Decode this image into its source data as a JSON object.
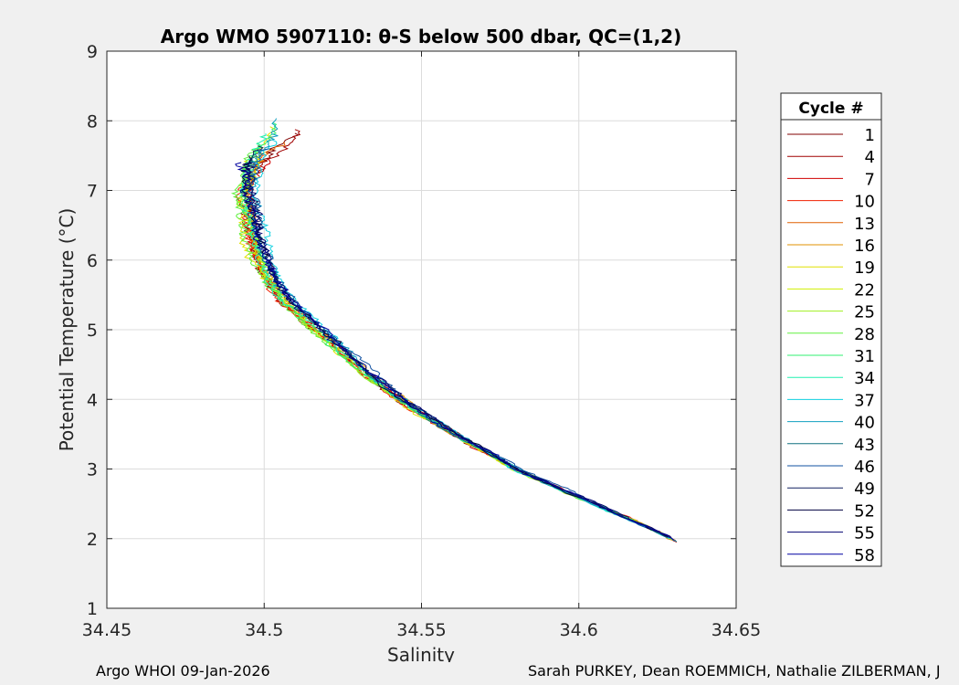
{
  "chart_data": {
    "type": "line",
    "title": "Argo WMO 5907110: θ-S below 500 dbar,  QC=(1,2)",
    "xlabel": "Salinity",
    "ylabel": "Potential Temperature (°C)",
    "xlim": [
      34.45,
      34.65
    ],
    "ylim": [
      1,
      9
    ],
    "xticks": [
      34.45,
      34.5,
      34.55,
      34.6,
      34.65
    ],
    "xtick_labels": [
      "34.45",
      "34.5",
      "34.55",
      "34.6",
      "34.65"
    ],
    "yticks": [
      1,
      2,
      3,
      4,
      5,
      6,
      7,
      8,
      9
    ],
    "ytick_labels": [
      "1",
      "2",
      "3",
      "4",
      "5",
      "6",
      "7",
      "8",
      "9"
    ],
    "grid": true,
    "legend": {
      "title": "Cycle #",
      "placement": "right",
      "entries": [
        {
          "label": "1",
          "color": "#800000"
        },
        {
          "label": "4",
          "color": "#a00000"
        },
        {
          "label": "7",
          "color": "#d00000"
        },
        {
          "label": "10",
          "color": "#f02000"
        },
        {
          "label": "13",
          "color": "#e06000"
        },
        {
          "label": "16",
          "color": "#e09000"
        },
        {
          "label": "19",
          "color": "#e0e000"
        },
        {
          "label": "22",
          "color": "#d0f000"
        },
        {
          "label": "25",
          "color": "#a0f020"
        },
        {
          "label": "28",
          "color": "#60f040"
        },
        {
          "label": "31",
          "color": "#30f070"
        },
        {
          "label": "34",
          "color": "#20f0b0"
        },
        {
          "label": "37",
          "color": "#10d0e0"
        },
        {
          "label": "40",
          "color": "#10a0c0"
        },
        {
          "label": "43",
          "color": "#107080"
        },
        {
          "label": "46",
          "color": "#1050a0"
        },
        {
          "label": "49",
          "color": "#102060"
        },
        {
          "label": "52",
          "color": "#000040"
        },
        {
          "label": "55",
          "color": "#000070"
        },
        {
          "label": "58",
          "color": "#0000a0"
        }
      ]
    },
    "mean_profile": {
      "salinity": [
        34.632,
        34.625,
        34.61,
        34.595,
        34.58,
        34.565,
        34.55,
        34.535,
        34.525,
        34.515,
        34.508,
        34.503,
        34.5,
        34.497,
        34.495,
        34.497,
        34.505
      ],
      "theta": [
        1.93,
        2.1,
        2.4,
        2.7,
        3.0,
        3.4,
        3.8,
        4.3,
        4.7,
        5.1,
        5.4,
        5.7,
        6.0,
        6.4,
        7.0,
        7.4,
        7.8
      ]
    }
  },
  "footer": {
    "left": "Argo WHOI 09-Jan-2026",
    "right": "Sarah PURKEY, Dean ROEMMICH, Nathalie ZILBERMAN, J"
  }
}
